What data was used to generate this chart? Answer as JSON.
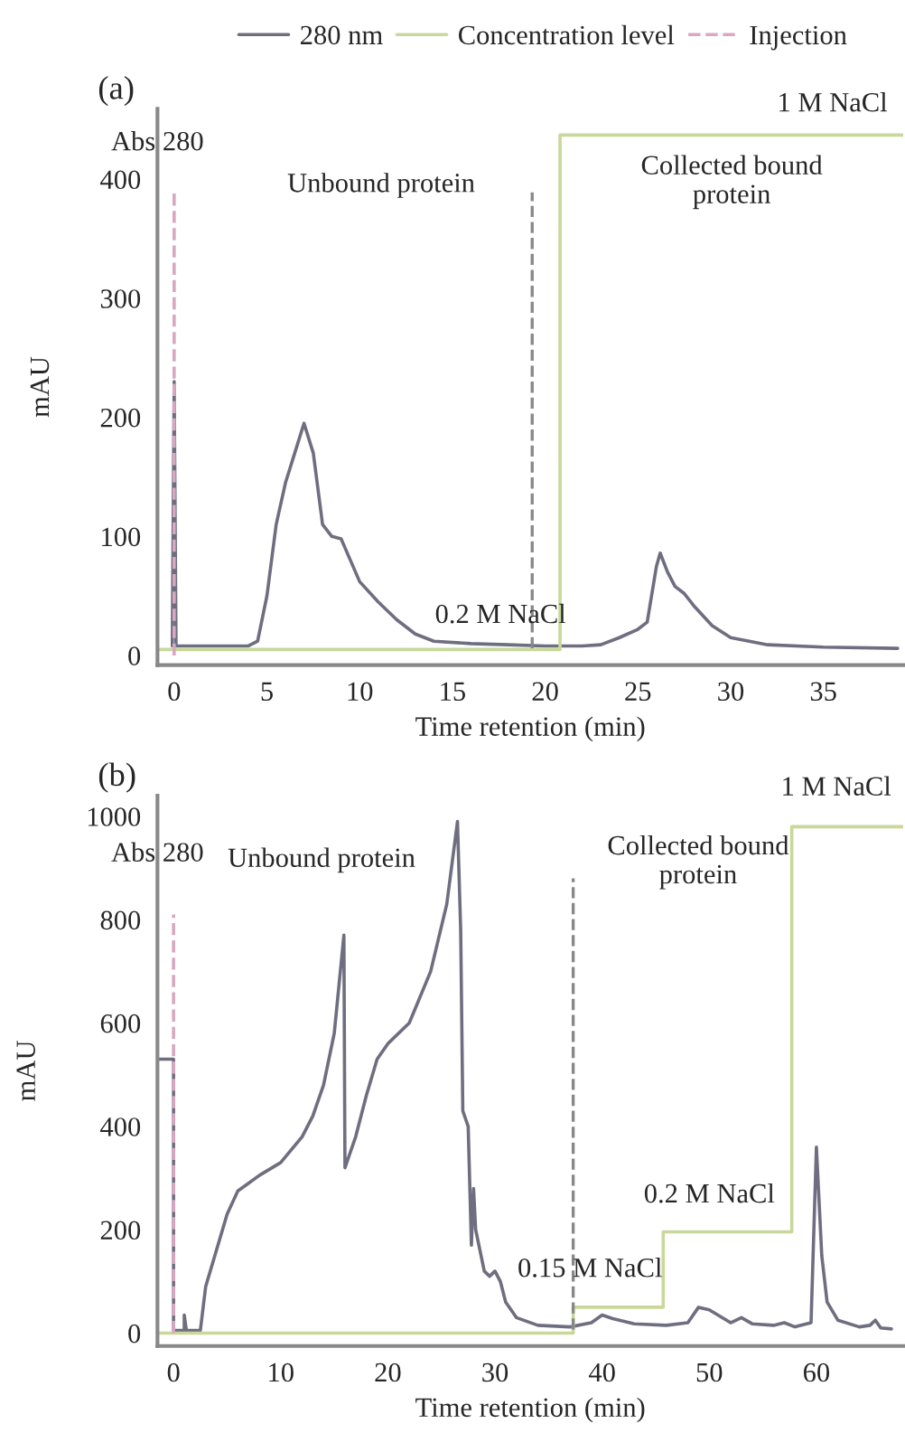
{
  "chart_data": [
    {
      "type": "line",
      "title": "(a)",
      "xlabel": "Time retention (min)",
      "ylabel": "mAU",
      "xlim": [
        -0.9,
        39.3
      ],
      "ylim": [
        -8,
        459
      ],
      "xticks": [
        0,
        5,
        10,
        15,
        20,
        25,
        30,
        35
      ],
      "yticks": [
        0,
        100,
        200,
        300,
        400
      ],
      "grid": false,
      "legend": "top",
      "series": [
        {
          "name": "280 nm",
          "color": "#6e6e80",
          "x": [
            -0.1,
            0,
            0.1,
            4,
            4.5,
            5,
            5.5,
            6,
            6.5,
            7,
            7.5,
            8,
            8.5,
            9,
            9.5,
            10,
            11,
            12,
            13,
            14,
            16,
            18,
            20,
            22,
            23,
            24,
            25,
            25.5,
            26,
            26.2,
            26.6,
            27,
            27.5,
            28,
            29,
            30,
            32,
            35,
            39
          ],
          "values": [
            8,
            230,
            8,
            8,
            12,
            50,
            110,
            145,
            170,
            195,
            170,
            110,
            100,
            98,
            80,
            62,
            45,
            30,
            18,
            12,
            10,
            9,
            8,
            8,
            9,
            15,
            22,
            28,
            75,
            86,
            70,
            58,
            52,
            42,
            25,
            15,
            9,
            7,
            6
          ]
        },
        {
          "name": "Concentration level",
          "color": "#c8d89a",
          "x": [
            -0.9,
            20.8,
            20.8,
            39.3
          ],
          "values": [
            5,
            5,
            437,
            437
          ]
        },
        {
          "name": "Injection",
          "color": "#d8a8c0",
          "line_style": "dashed",
          "x": [
            0,
            0
          ],
          "values": [
            0,
            390
          ]
        }
      ],
      "ref_lines": [
        {
          "axis": "x",
          "value": 19.3,
          "color": "#888888",
          "line_style": "dashed"
        }
      ],
      "annotations": [
        "Abs 280",
        "Unbound protein",
        "Collected bound\nprotein",
        "1 M NaCl",
        "0.2 M NaCl"
      ]
    },
    {
      "type": "line",
      "title": "(b)",
      "xlabel": "Time retention (min)",
      "ylabel": "mAU",
      "xlim": [
        -1.5,
        68.1
      ],
      "ylim": [
        -25,
        1040
      ],
      "xticks": [
        0,
        10,
        20,
        30,
        40,
        50,
        60
      ],
      "yticks": [
        0,
        200,
        400,
        600,
        800,
        1000
      ],
      "grid": false,
      "series": [
        {
          "color": "#6e6e80",
          "x": [
            -1.5,
            0,
            0,
            1,
            1,
            1.2,
            2.5,
            3,
            4,
            5,
            6,
            7,
            8,
            10,
            12,
            13,
            14,
            15,
            15.9,
            16,
            17,
            18,
            19,
            20,
            22,
            24,
            25.5,
            26.5,
            26.8,
            27,
            27.5,
            27.8,
            28,
            28.2,
            29,
            29.5,
            30,
            30.5,
            31,
            32,
            34,
            37,
            39,
            40,
            41,
            43,
            46,
            48,
            49,
            50,
            52,
            53,
            54,
            56,
            57,
            58,
            59.5,
            60,
            60.5,
            61,
            62,
            64,
            65,
            65.5,
            66,
            67
          ],
          "values": [
            530,
            530,
            5,
            5,
            35,
            5,
            5,
            90,
            160,
            230,
            275,
            290,
            305,
            330,
            380,
            420,
            480,
            580,
            770,
            320,
            380,
            460,
            530,
            560,
            600,
            700,
            830,
            990,
            780,
            430,
            400,
            170,
            280,
            200,
            120,
            110,
            120,
            100,
            60,
            30,
            15,
            12,
            20,
            35,
            28,
            18,
            15,
            20,
            50,
            45,
            20,
            30,
            18,
            15,
            20,
            12,
            20,
            360,
            150,
            60,
            25,
            12,
            15,
            25,
            10,
            8
          ]
        },
        {
          "color": "#c8d89a",
          "x": [
            -1.5,
            37.3,
            37.3,
            45.7,
            45.7,
            57.7,
            57.7,
            68.1
          ],
          "values": [
            0,
            0,
            50,
            50,
            196,
            196,
            980,
            980
          ]
        },
        {
          "color": "#d8a8c0",
          "line_style": "dashed",
          "x": [
            0,
            0
          ],
          "values": [
            0,
            810
          ]
        }
      ],
      "ref_lines": [
        {
          "axis": "x",
          "value": 37.3,
          "color": "#888888",
          "line_style": "dashed"
        }
      ],
      "annotations": [
        "Abs 280",
        "Unbound protein",
        "Collected bound\nprotein",
        "1 M NaCl",
        "0.2 M NaCl",
        "0.15 M NaCl"
      ]
    }
  ]
}
